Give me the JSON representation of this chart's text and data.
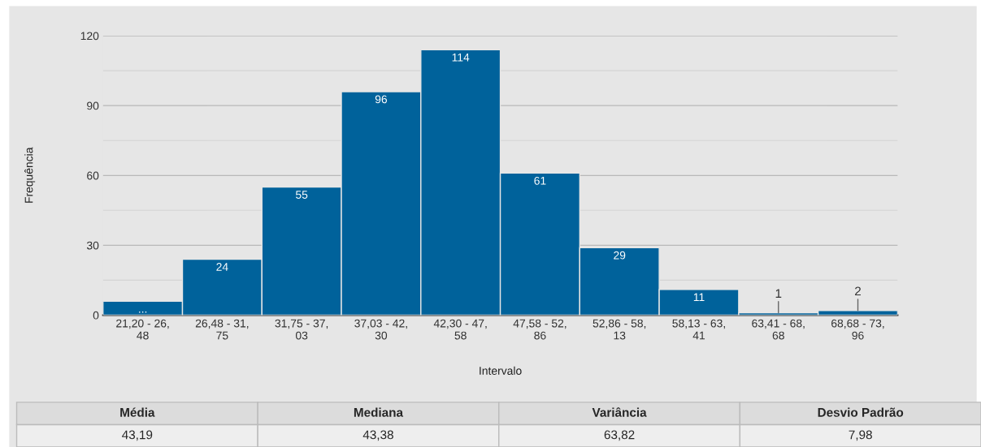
{
  "chart_data": {
    "type": "bar",
    "xlabel": "Intervalo",
    "ylabel": "Frequência",
    "categories": [
      "21,20 - 26,48",
      "26,48 - 31,75",
      "31,75 - 37,03",
      "37,03 - 42,30",
      "42,30 - 47,58",
      "47,58 - 52,86",
      "52,86 - 58,13",
      "58,13 - 63,41",
      "63,41 - 68,68",
      "68,68 - 73,96"
    ],
    "values": [
      6,
      24,
      55,
      96,
      114,
      61,
      29,
      11,
      1,
      2
    ],
    "value_labels": [
      "...",
      "24",
      "55",
      "96",
      "114",
      "61",
      "29",
      "11",
      "1",
      "2"
    ],
    "color": "#00629b",
    "ylim": [
      0,
      120
    ],
    "yticks": [
      0,
      30,
      60,
      90,
      120
    ],
    "grid": "y",
    "annotations": [
      "Média",
      "Mediana",
      "Variância",
      "Desvio Padrão",
      "43,19",
      "43,38",
      "63,82",
      "7,98"
    ]
  }
}
